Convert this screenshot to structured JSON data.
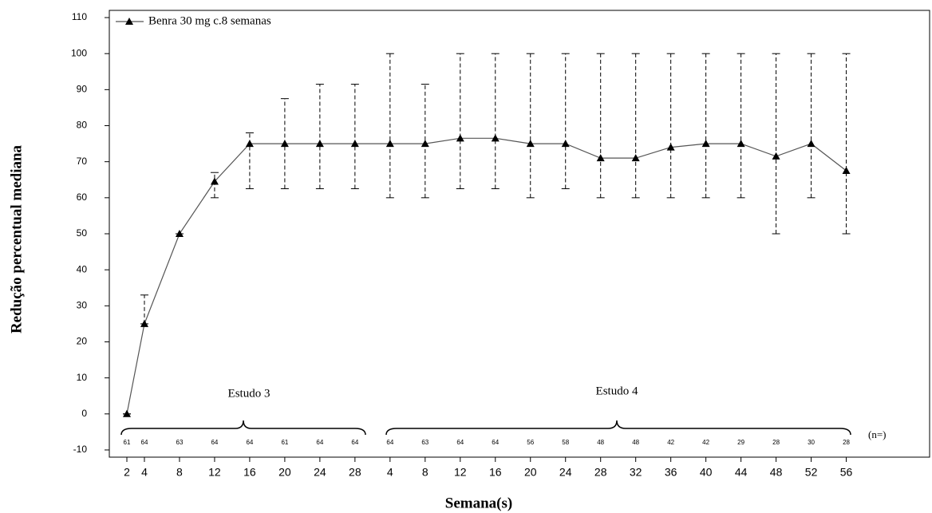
{
  "chart_data": {
    "type": "line",
    "x_label": "Semana(s)",
    "y_label": "Redução percentual mediana",
    "x": [
      2,
      4,
      8,
      12,
      16,
      20,
      24,
      28,
      32,
      36,
      40,
      44,
      48,
      52,
      56,
      60,
      64,
      68,
      72,
      76,
      80,
      84
    ],
    "xlim": [
      0,
      93.5
    ],
    "xticks": [
      2,
      4,
      8,
      12,
      16,
      20,
      24,
      28,
      {
        "value": 32,
        "label": "4"
      },
      {
        "value": 36,
        "label": "8"
      },
      {
        "value": 40,
        "label": "12"
      },
      {
        "value": 44,
        "label": "16"
      },
      {
        "value": 48,
        "label": "20"
      },
      {
        "value": 52,
        "label": "24"
      },
      {
        "value": 56,
        "label": "28"
      },
      {
        "value": 60,
        "label": "32"
      },
      {
        "value": 64,
        "label": "36"
      },
      {
        "value": 68,
        "label": "40"
      },
      {
        "value": 72,
        "label": "44"
      },
      {
        "value": 76,
        "label": "48"
      },
      {
        "value": 80,
        "label": "52"
      },
      {
        "value": 84,
        "label": "56"
      }
    ],
    "ylim": [
      -12,
      112
    ],
    "yticks": [
      -10,
      0,
      10,
      20,
      30,
      40,
      50,
      60,
      70,
      80,
      90,
      100,
      110
    ],
    "series": [
      {
        "name": "Benra 30 mg c.8 semanas",
        "color": "#000000",
        "line_color": "#555555",
        "values": [
          0,
          25,
          50,
          64.5,
          75,
          75,
          75,
          75,
          75,
          75,
          76.5,
          76.5,
          75,
          75,
          71,
          71,
          74,
          75,
          75,
          71.5,
          75,
          67.5
        ],
        "lower": [
          0,
          25,
          50,
          60,
          62.5,
          62.5,
          62.5,
          62.5,
          60,
          60,
          62.5,
          62.5,
          60,
          62.5,
          60,
          60,
          60,
          60,
          60,
          50,
          60,
          50
        ],
        "upper": [
          0,
          33,
          50,
          67,
          78,
          87.5,
          91.5,
          91.5,
          100,
          91.5,
          100,
          100,
          100,
          100,
          100,
          100,
          100,
          100,
          100,
          100,
          100,
          100
        ]
      }
    ],
    "n_label": "(n=)",
    "n_values": [
      61,
      64,
      63,
      64,
      64,
      61,
      64,
      64,
      64,
      63,
      64,
      64,
      56,
      58,
      48,
      48,
      42,
      42,
      29,
      28,
      30,
      28
    ],
    "annotations": [
      "Estudo 3",
      "Estudo 4"
    ],
    "legend": "upper left"
  }
}
